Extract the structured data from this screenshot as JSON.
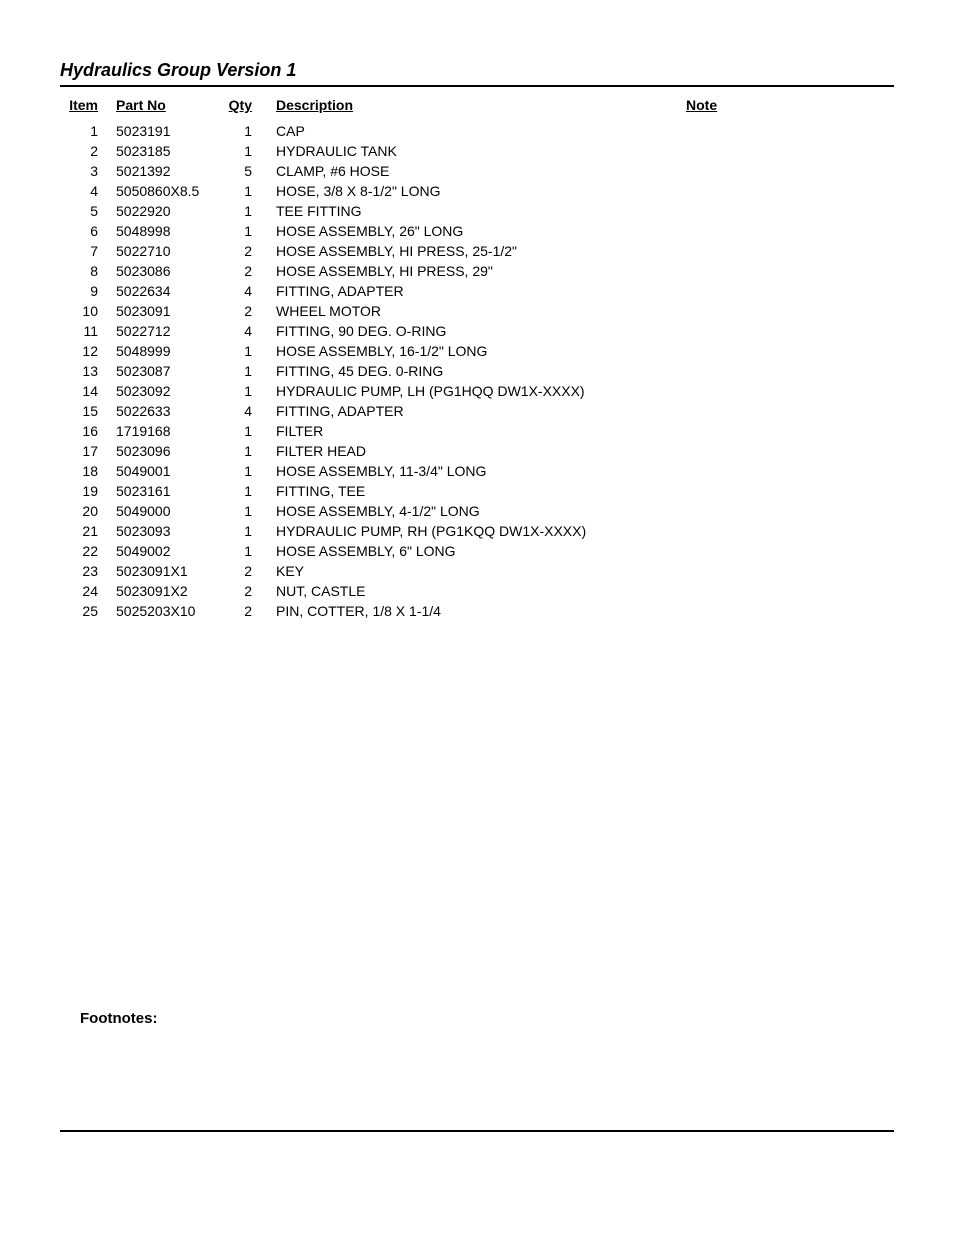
{
  "title": "Hydraulics Group Version 1",
  "footnotes_label": "Footnotes:",
  "table": {
    "headers": {
      "item": "Item",
      "partno": "Part No",
      "qty": "Qty",
      "description": "Description",
      "note": "Note"
    },
    "rows": [
      {
        "item": "1",
        "partno": "5023191",
        "qty": "1",
        "desc": "CAP",
        "note": ""
      },
      {
        "item": "2",
        "partno": "5023185",
        "qty": "1",
        "desc": "HYDRAULIC TANK",
        "note": ""
      },
      {
        "item": "3",
        "partno": "5021392",
        "qty": "5",
        "desc": "CLAMP, #6 HOSE",
        "note": ""
      },
      {
        "item": "4",
        "partno": "5050860X8.5",
        "qty": "1",
        "desc": "HOSE, 3/8 X 8-1/2\" LONG",
        "note": ""
      },
      {
        "item": "5",
        "partno": "5022920",
        "qty": "1",
        "desc": "TEE FITTING",
        "note": ""
      },
      {
        "item": "6",
        "partno": "5048998",
        "qty": "1",
        "desc": "HOSE ASSEMBLY, 26\" LONG",
        "note": ""
      },
      {
        "item": "7",
        "partno": "5022710",
        "qty": "2",
        "desc": "HOSE ASSEMBLY, HI PRESS, 25-1/2\"",
        "note": ""
      },
      {
        "item": "8",
        "partno": "5023086",
        "qty": "2",
        "desc": "HOSE ASSEMBLY, HI PRESS, 29\"",
        "note": ""
      },
      {
        "item": "9",
        "partno": "5022634",
        "qty": "4",
        "desc": "FITTING, ADAPTER",
        "note": ""
      },
      {
        "item": "10",
        "partno": "5023091",
        "qty": "2",
        "desc": "WHEEL MOTOR",
        "note": ""
      },
      {
        "item": "11",
        "partno": "5022712",
        "qty": "4",
        "desc": "FITTING, 90 DEG. O-RING",
        "note": ""
      },
      {
        "item": "12",
        "partno": "5048999",
        "qty": "1",
        "desc": "HOSE ASSEMBLY, 16-1/2\" LONG",
        "note": ""
      },
      {
        "item": "13",
        "partno": "5023087",
        "qty": "1",
        "desc": "FITTING, 45 DEG. 0-RING",
        "note": ""
      },
      {
        "item": "14",
        "partno": "5023092",
        "qty": "1",
        "desc": "HYDRAULIC PUMP, LH (PG1HQQ DW1X-XXXX)",
        "note": ""
      },
      {
        "item": "15",
        "partno": "5022633",
        "qty": "4",
        "desc": "FITTING, ADAPTER",
        "note": ""
      },
      {
        "item": "16",
        "partno": "1719168",
        "qty": "1",
        "desc": "FILTER",
        "note": ""
      },
      {
        "item": "17",
        "partno": "5023096",
        "qty": "1",
        "desc": "FILTER HEAD",
        "note": ""
      },
      {
        "item": "18",
        "partno": "5049001",
        "qty": "1",
        "desc": "HOSE ASSEMBLY, 11-3/4\" LONG",
        "note": ""
      },
      {
        "item": "19",
        "partno": "5023161",
        "qty": "1",
        "desc": "FITTING, TEE",
        "note": ""
      },
      {
        "item": "20",
        "partno": "5049000",
        "qty": "1",
        "desc": "HOSE ASSEMBLY, 4-1/2\" LONG",
        "note": ""
      },
      {
        "item": "21",
        "partno": "5023093",
        "qty": "1",
        "desc": "HYDRAULIC PUMP, RH (PG1KQQ DW1X-XXXX)",
        "note": ""
      },
      {
        "item": "22",
        "partno": "5049002",
        "qty": "1",
        "desc": "HOSE ASSEMBLY, 6\" LONG",
        "note": ""
      },
      {
        "item": "23",
        "partno": "5023091X1",
        "qty": "2",
        "desc": "KEY",
        "note": ""
      },
      {
        "item": "24",
        "partno": "5023091X2",
        "qty": "2",
        "desc": "NUT, CASTLE",
        "note": ""
      },
      {
        "item": "25",
        "partno": "5025203X10",
        "qty": "2",
        "desc": "PIN, COTTER, 1/8 X 1-1/4",
        "note": ""
      }
    ]
  },
  "style": {
    "font_family": "Arial, Helvetica, sans-serif",
    "title_fontsize": 18,
    "body_fontsize": 14,
    "text_color": "#000000",
    "background_color": "#ffffff",
    "rule_color": "#000000",
    "col_widths": {
      "item": 50,
      "partno": 110,
      "qty": 50,
      "desc": 410
    }
  }
}
